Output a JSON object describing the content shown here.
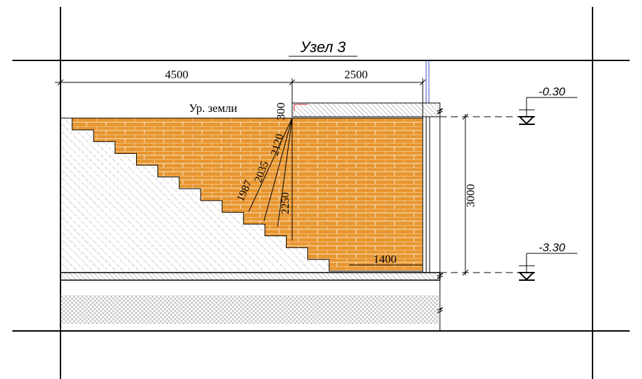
{
  "title": "Узел 3",
  "dimensions": {
    "top_left": "4500",
    "top_right": "2500",
    "slab": "300",
    "height": "3000",
    "bottom": "1400",
    "diagonals": [
      "1987",
      "2035",
      "2120",
      "2250"
    ]
  },
  "labels": {
    "ground": "Ур. земли"
  },
  "levels": [
    "-0.30",
    "-3.30"
  ]
}
